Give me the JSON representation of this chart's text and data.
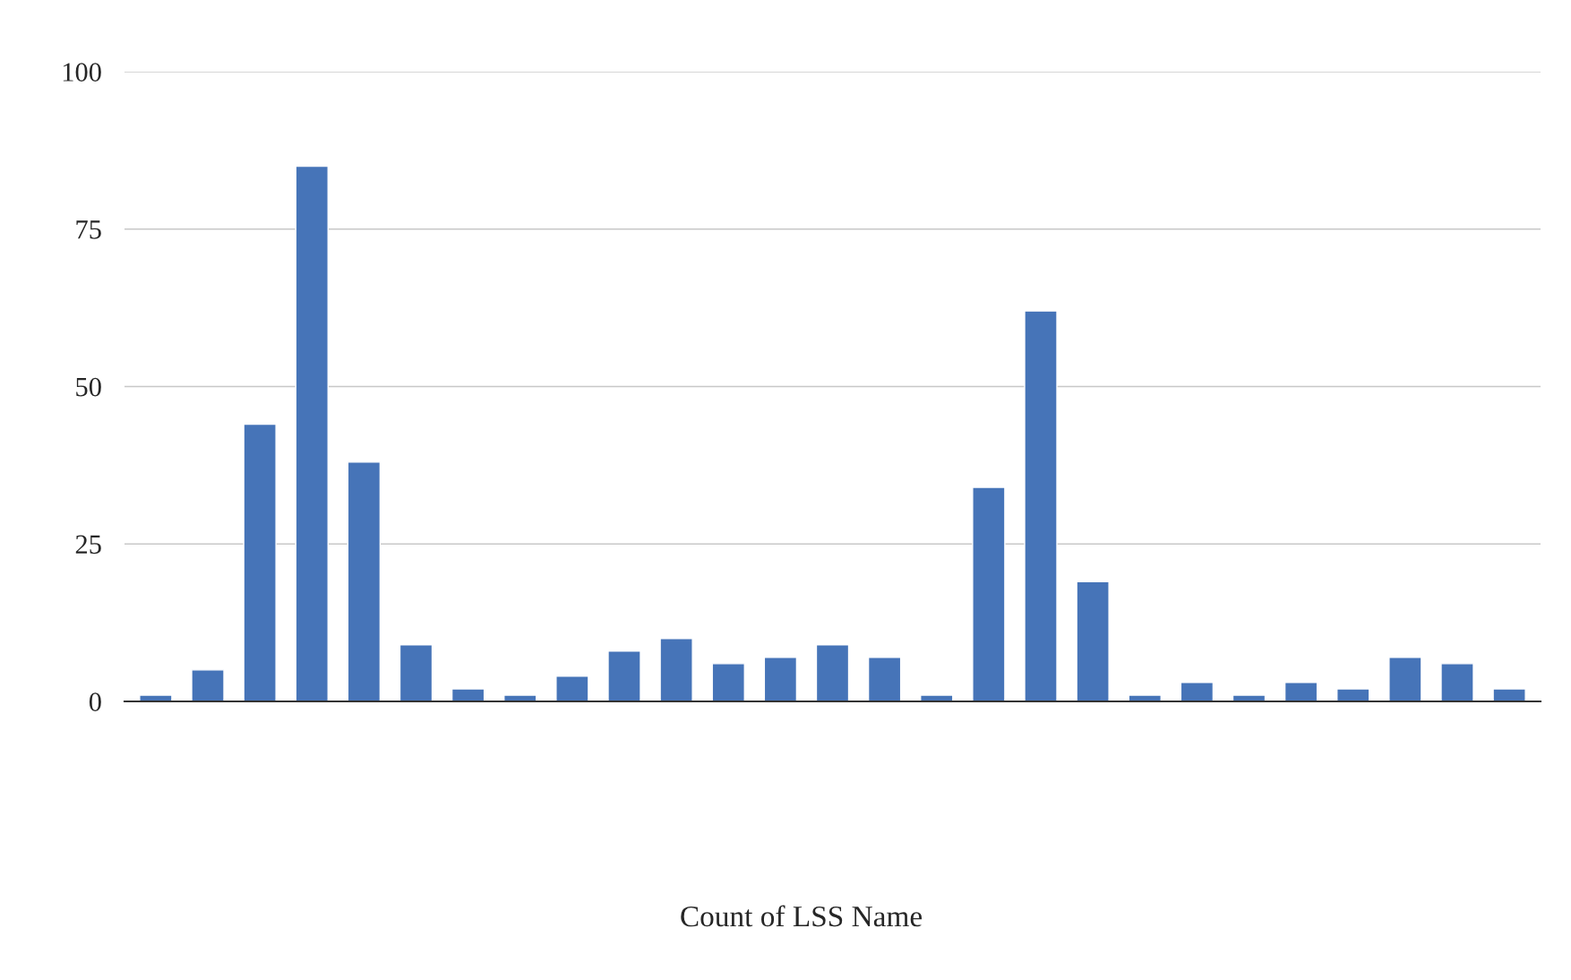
{
  "chart_data": {
    "type": "bar",
    "annotations": [
      "Count of LSS Name"
    ],
    "categories": [
      null,
      null,
      null,
      null,
      null,
      null,
      null,
      null,
      null,
      null,
      null,
      null,
      null,
      null,
      null,
      null,
      null,
      null,
      null,
      null,
      null,
      null,
      null,
      null,
      null,
      null,
      null
    ],
    "values": [
      1,
      5,
      44,
      85,
      38,
      9,
      2,
      1,
      4,
      8,
      10,
      6,
      7,
      9,
      7,
      1,
      34,
      62,
      19,
      1,
      3,
      1,
      3,
      2,
      7,
      6,
      2
    ],
    "color": "#4674b8",
    "ylim": [
      0,
      100
    ],
    "yticks": [
      0,
      25,
      50,
      75,
      100
    ],
    "grid": "y",
    "legend": false
  }
}
